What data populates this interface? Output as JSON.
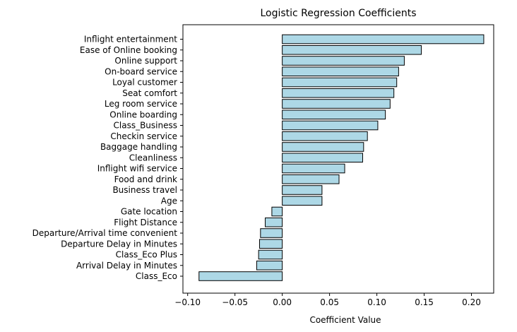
{
  "chart_data": {
    "type": "bar",
    "orientation": "horizontal",
    "title": "Logistic Regression Coefficients",
    "xlabel": "Coefficient Value",
    "ylabel": "",
    "xlim": [
      -0.105,
      0.2235
    ],
    "xticks": [
      -0.1,
      -0.05,
      0.0,
      0.05,
      0.1,
      0.15,
      0.2
    ],
    "xtick_labels": [
      "−0.10",
      "−0.05",
      "0.00",
      "0.05",
      "0.10",
      "0.15",
      "0.20"
    ],
    "grid": false,
    "bar_color": "#add8e6",
    "edge_color": "#000000",
    "categories": [
      "Inflight entertainment",
      "Ease of Online booking",
      "Online support",
      "On-board service",
      "Loyal customer",
      "Seat comfort",
      "Leg room service",
      "Online boarding",
      "Class_Business",
      "Checkin service",
      "Baggage handling",
      "Cleanliness",
      "Inflight wifi service",
      "Food and drink",
      "Business travel",
      "Age",
      "Gate location",
      "Flight Distance",
      "Departure/Arrival time convenient",
      "Departure Delay in Minutes",
      "Class_Eco Plus",
      "Arrival Delay in Minutes",
      "Class_Eco"
    ],
    "values": [
      0.213,
      0.147,
      0.129,
      0.123,
      0.121,
      0.118,
      0.114,
      0.109,
      0.101,
      0.09,
      0.086,
      0.085,
      0.066,
      0.06,
      0.042,
      0.042,
      -0.011,
      -0.018,
      -0.023,
      -0.024,
      -0.025,
      -0.027,
      -0.088
    ]
  }
}
